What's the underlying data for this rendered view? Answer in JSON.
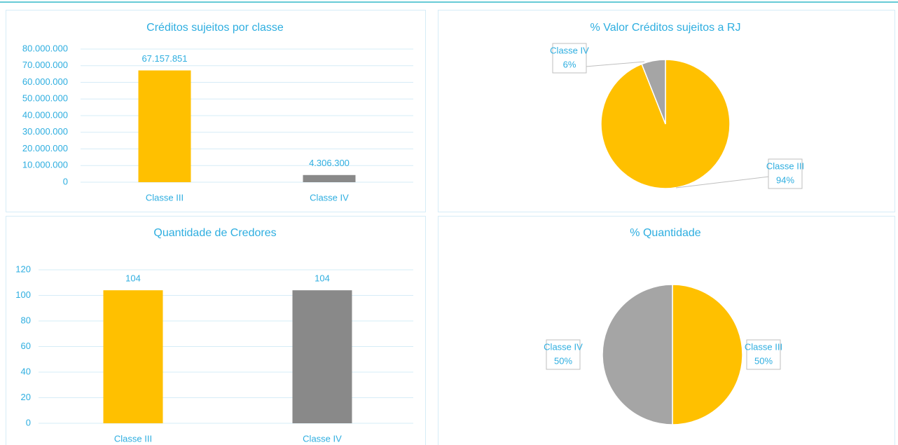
{
  "chart_data": [
    {
      "type": "bar",
      "title": "Créditos sujeitos por classe",
      "categories": [
        "Classe III",
        "Classe IV"
      ],
      "values": [
        67157851,
        4306300
      ],
      "value_labels": [
        "67.157.851",
        "4.306.300"
      ],
      "colors": [
        "#ffc000",
        "#898989"
      ],
      "ylim": [
        0,
        80000000
      ],
      "yticks": [
        {
          "value": 0,
          "label": "0"
        },
        {
          "value": 10000000,
          "label": "10.000.000"
        },
        {
          "value": 20000000,
          "label": "20.000.000"
        },
        {
          "value": 30000000,
          "label": "30.000.000"
        },
        {
          "value": 40000000,
          "label": "40.000.000"
        },
        {
          "value": 50000000,
          "label": "50.000.000"
        },
        {
          "value": 60000000,
          "label": "60.000.000"
        },
        {
          "value": 70000000,
          "label": "70.000.000"
        },
        {
          "value": 80000000,
          "label": "80.000.000"
        }
      ],
      "grid": true
    },
    {
      "type": "pie",
      "title": "% Valor Créditos sujeitos a RJ",
      "categories": [
        "Classe III",
        "Classe IV"
      ],
      "values": [
        94,
        6
      ],
      "value_labels": [
        "94%",
        "6%"
      ],
      "colors": [
        "#ffc000",
        "#a5a5a5"
      ]
    },
    {
      "type": "bar",
      "title": "Quantidade de Credores",
      "categories": [
        "Classe III",
        "Classe IV"
      ],
      "values": [
        104,
        104
      ],
      "colors": [
        "#ffc000",
        "#898989"
      ],
      "ylim": [
        0,
        120
      ],
      "yticks": [
        0,
        20,
        40,
        60,
        80,
        100,
        120
      ],
      "grid": true
    },
    {
      "type": "pie",
      "title": "% Quantidade",
      "categories": [
        "Classe III",
        "Classe IV"
      ],
      "values": [
        50,
        50
      ],
      "value_labels": [
        "50%",
        "50%"
      ],
      "colors": [
        "#ffc000",
        "#a5a5a5"
      ]
    }
  ]
}
